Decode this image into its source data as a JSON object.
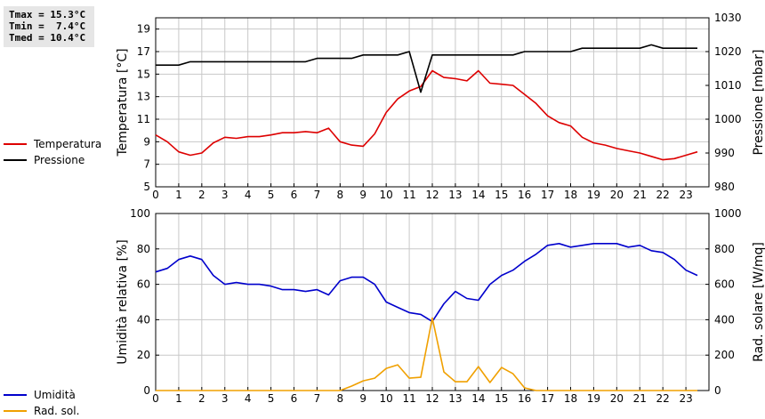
{
  "stats": {
    "tmax": "Tmax = 15.3°C",
    "tmin": "Tmin =  7.4°C",
    "tmed": "Tmed = 10.4°C"
  },
  "legend_top": [
    {
      "label": "Temperatura",
      "color": "#dd0000"
    },
    {
      "label": "Pressione",
      "color": "#000000"
    }
  ],
  "legend_bottom": [
    {
      "label": "Umidità",
      "color": "#0000cc"
    },
    {
      "label": "Rad. sol.",
      "color": "#f0a000"
    }
  ],
  "chart_data": [
    {
      "type": "line",
      "ylabel_left": "Temperatura [°C]",
      "ylabel_right": "Pressione [mbar]",
      "xlim": [
        0,
        24
      ],
      "ylim_left": [
        5,
        20
      ],
      "ylim_right": [
        980,
        1030
      ],
      "x_ticks": [
        0,
        1,
        2,
        3,
        4,
        5,
        6,
        7,
        8,
        9,
        10,
        11,
        12,
        13,
        14,
        15,
        16,
        17,
        18,
        19,
        20,
        21,
        22,
        23
      ],
      "y_ticks_left": [
        5,
        7,
        9,
        11,
        13,
        15,
        17,
        19
      ],
      "y_ticks_right": [
        980,
        990,
        1000,
        1010,
        1020,
        1030
      ],
      "grid": true,
      "series": [
        {
          "name": "Temperatura",
          "axis": "left",
          "color": "#dd0000",
          "x": [
            0,
            0.5,
            1,
            1.5,
            2,
            2.5,
            3,
            3.5,
            4,
            4.5,
            5,
            5.5,
            6,
            6.5,
            7,
            7.5,
            8,
            8.5,
            9,
            9.5,
            10,
            10.5,
            11,
            11.5,
            12,
            12.5,
            13,
            13.5,
            14,
            14.5,
            15,
            15.5,
            16,
            16.5,
            17,
            17.5,
            18,
            18.5,
            19,
            19.5,
            20,
            20.5,
            21,
            21.5,
            22,
            22.5,
            23,
            23.5
          ],
          "y": [
            9.6,
            9.0,
            8.1,
            7.8,
            8.0,
            8.9,
            9.4,
            9.3,
            9.45,
            9.45,
            9.6,
            9.8,
            9.8,
            9.9,
            9.8,
            10.2,
            9.0,
            8.7,
            8.6,
            9.7,
            11.6,
            12.8,
            13.5,
            13.9,
            15.3,
            14.7,
            14.6,
            14.4,
            15.3,
            14.2,
            14.1,
            14.0,
            13.2,
            12.4,
            11.3,
            10.7,
            10.4,
            9.4,
            8.9,
            8.7,
            8.4,
            8.2,
            8.0,
            7.7,
            7.4,
            7.5,
            7.8,
            8.1
          ]
        },
        {
          "name": "Pressione",
          "axis": "right",
          "color": "#000000",
          "x": [
            0,
            0.5,
            1,
            1.5,
            2,
            2.5,
            3,
            3.5,
            4,
            4.5,
            5,
            5.5,
            6,
            6.5,
            7,
            7.5,
            8,
            8.5,
            9,
            9.5,
            10,
            10.5,
            11,
            11.5,
            12,
            12.5,
            13,
            13.5,
            14,
            14.5,
            15,
            15.5,
            16,
            16.5,
            17,
            17.5,
            18,
            18.5,
            19,
            19.5,
            20,
            20.5,
            21,
            21.5,
            22,
            22.5,
            23,
            23.5
          ],
          "y": [
            1016,
            1016,
            1016,
            1017,
            1017,
            1017,
            1017,
            1017,
            1017,
            1017,
            1017,
            1017,
            1017,
            1017,
            1018,
            1018,
            1018,
            1018,
            1019,
            1019,
            1019,
            1019,
            1020,
            1008,
            1019,
            1019,
            1019,
            1019,
            1019,
            1019,
            1019,
            1019,
            1020,
            1020,
            1020,
            1020,
            1020,
            1021,
            1021,
            1021,
            1021,
            1021,
            1021,
            1022,
            1021,
            1021,
            1021,
            1021
          ]
        }
      ]
    },
    {
      "type": "line",
      "ylabel_left": "Umidità relativa [%]",
      "ylabel_right": "Rad. solare [W/mq]",
      "xlim": [
        0,
        24
      ],
      "ylim_left": [
        0,
        100
      ],
      "ylim_right": [
        0,
        1000
      ],
      "x_ticks": [
        0,
        1,
        2,
        3,
        4,
        5,
        6,
        7,
        8,
        9,
        10,
        11,
        12,
        13,
        14,
        15,
        16,
        17,
        18,
        19,
        20,
        21,
        22,
        23
      ],
      "y_ticks_left": [
        0,
        20,
        40,
        60,
        80,
        100
      ],
      "y_ticks_right": [
        0,
        200,
        400,
        600,
        800,
        1000
      ],
      "grid": true,
      "series": [
        {
          "name": "Umidità",
          "axis": "left",
          "color": "#0000cc",
          "x": [
            0,
            0.5,
            1,
            1.5,
            2,
            2.5,
            3,
            3.5,
            4,
            4.5,
            5,
            5.5,
            6,
            6.5,
            7,
            7.5,
            8,
            8.5,
            9,
            9.5,
            10,
            10.5,
            11,
            11.5,
            12,
            12.5,
            13,
            13.5,
            14,
            14.5,
            15,
            15.5,
            16,
            16.5,
            17,
            17.5,
            18,
            18.5,
            19,
            19.5,
            20,
            20.5,
            21,
            21.5,
            22,
            22.5,
            23,
            23.5
          ],
          "y": [
            67,
            69,
            74,
            76,
            74,
            65,
            60,
            61,
            60,
            60,
            59,
            57,
            57,
            56,
            57,
            54,
            62,
            64,
            64,
            60,
            50,
            47,
            44,
            43,
            39,
            49,
            56,
            52,
            51,
            60,
            65,
            68,
            73,
            77,
            82,
            83,
            81,
            82,
            83,
            83,
            83,
            81,
            82,
            79,
            78,
            74,
            68,
            65
          ]
        },
        {
          "name": "Rad. sol.",
          "axis": "right",
          "color": "#f0a000",
          "x": [
            0,
            0.5,
            1,
            1.5,
            2,
            2.5,
            3,
            3.5,
            4,
            4.5,
            5,
            5.5,
            6,
            6.5,
            7,
            7.5,
            8,
            8.5,
            9,
            9.5,
            10,
            10.5,
            11,
            11.5,
            12,
            12.5,
            13,
            13.5,
            14,
            14.5,
            15,
            15.5,
            16,
            16.5,
            17,
            17.5,
            18,
            18.5,
            19,
            19.5,
            20,
            20.5,
            21,
            21.5,
            22,
            22.5,
            23,
            23.5
          ],
          "y": [
            0,
            0,
            0,
            0,
            0,
            0,
            0,
            0,
            0,
            0,
            0,
            0,
            0,
            0,
            0,
            0,
            0,
            25,
            55,
            70,
            125,
            145,
            70,
            75,
            410,
            105,
            50,
            50,
            135,
            45,
            130,
            95,
            15,
            0,
            0,
            0,
            0,
            0,
            0,
            0,
            0,
            0,
            0,
            0,
            0,
            0,
            0,
            0
          ]
        }
      ]
    }
  ]
}
